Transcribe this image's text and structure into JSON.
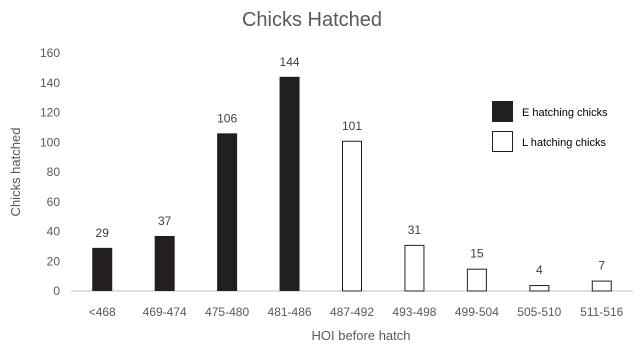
{
  "chart_data": {
    "type": "bar",
    "title": "Chicks Hatched",
    "xlabel": "HOI before hatch",
    "ylabel": "Chicks hatched",
    "ylim": [
      0,
      160
    ],
    "yticks": [
      0,
      20,
      40,
      60,
      80,
      100,
      120,
      140,
      160
    ],
    "grid": false,
    "legend_position": "right",
    "categories": [
      "<468",
      "469-474",
      "475-480",
      "481-486",
      "487-492",
      "493-498",
      "499-504",
      "505-510",
      "511-516"
    ],
    "series": [
      {
        "name": "E hatching chicks",
        "color": "#231f20",
        "fill": "solid",
        "values": [
          29,
          37,
          106,
          144,
          null,
          null,
          null,
          null,
          null
        ]
      },
      {
        "name": "L hatching chicks",
        "color": "#ffffff",
        "fill": "outline",
        "values": [
          null,
          null,
          null,
          null,
          101,
          31,
          15,
          4,
          7
        ]
      }
    ]
  }
}
